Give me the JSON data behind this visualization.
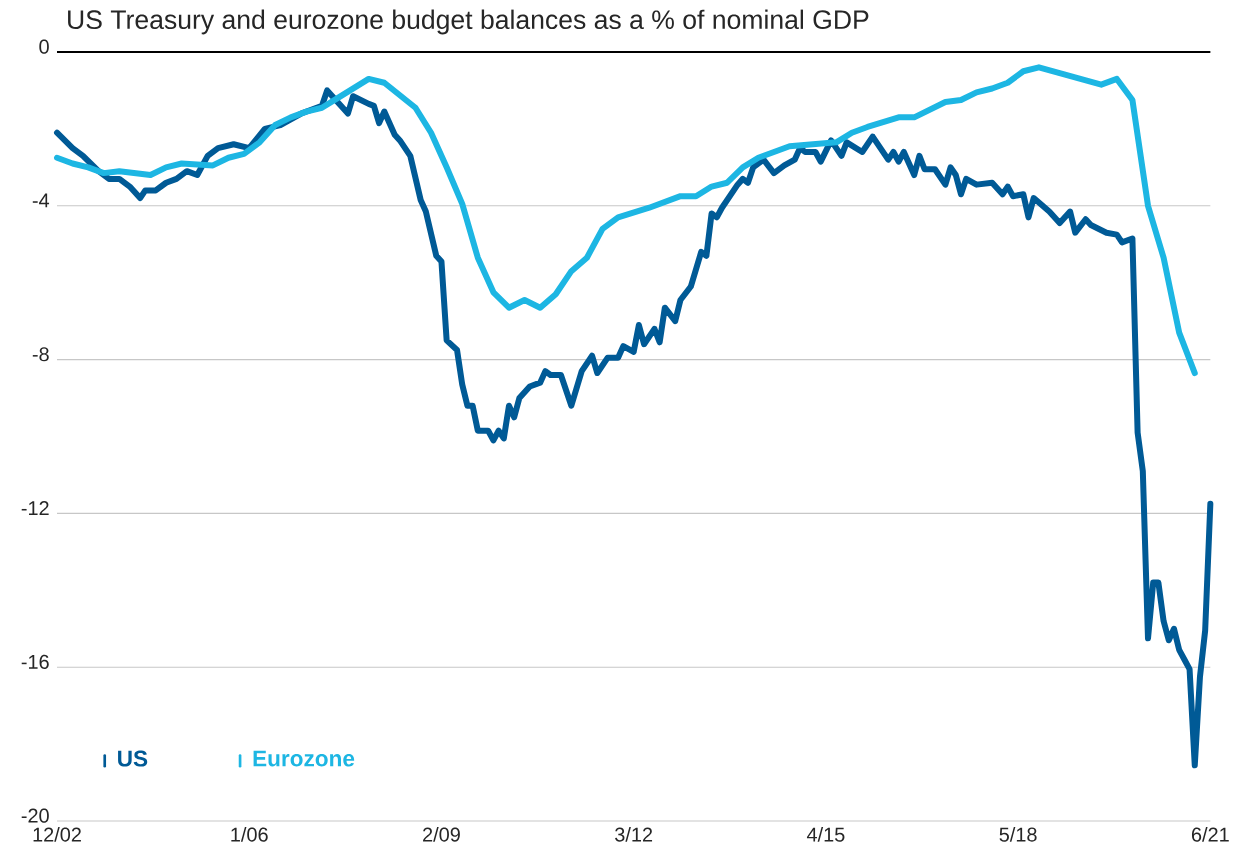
{
  "chart_data": {
    "type": "line",
    "title": "US Treasury and eurozone budget balances as a % of nominal GDP",
    "xlim": [
      "2002-12",
      "2021-06"
    ],
    "xticks": [
      {
        "value": "2002-12",
        "label": "12/02"
      },
      {
        "value": "2006-01",
        "label": "1/06"
      },
      {
        "value": "2009-02",
        "label": "2/09"
      },
      {
        "value": "2012-03",
        "label": "3/12"
      },
      {
        "value": "2015-04",
        "label": "4/15"
      },
      {
        "value": "2018-05",
        "label": "5/18"
      },
      {
        "value": "2021-06",
        "label": "6/21"
      }
    ],
    "ylim": [
      -20,
      0
    ],
    "yticks": [
      0,
      -4,
      -8,
      -12,
      -16,
      -20
    ],
    "grid": "y",
    "legend": "bottom left",
    "ref_lines": [
      {
        "axis": "y",
        "value": 0,
        "color": "#000000"
      }
    ],
    "series": [
      {
        "name": "US",
        "color": "#005a96",
        "x": [
          "2002-12",
          "2003-03",
          "2003-05",
          "2003-08",
          "2003-10",
          "2003-12",
          "2004-02",
          "2004-04",
          "2004-05",
          "2004-07",
          "2004-09",
          "2004-11",
          "2005-01",
          "2005-03",
          "2005-05",
          "2005-07",
          "2005-10",
          "2006-01",
          "2006-04",
          "2006-07",
          "2006-11",
          "2007-03",
          "2007-04",
          "2007-06",
          "2007-08",
          "2007-09",
          "2007-12",
          "2008-01",
          "2008-02",
          "2008-03",
          "2008-05",
          "2008-06",
          "2008-08",
          "2008-10",
          "2008-11",
          "2009-01",
          "2009-02",
          "2009-03",
          "2009-05",
          "2009-06",
          "2009-07",
          "2009-08",
          "2009-09",
          "2009-11",
          "2009-12",
          "2010-01",
          "2010-02",
          "2010-03",
          "2010-04",
          "2010-05",
          "2010-07",
          "2010-09",
          "2010-10",
          "2010-11",
          "2011-01",
          "2011-03",
          "2011-05",
          "2011-07",
          "2011-08",
          "2011-10",
          "2011-12",
          "2012-01",
          "2012-03",
          "2012-04",
          "2012-05",
          "2012-07",
          "2012-08",
          "2012-09",
          "2012-11",
          "2012-12",
          "2013-02",
          "2013-04",
          "2013-05",
          "2013-06",
          "2013-07",
          "2013-08",
          "2013-11",
          "2013-12",
          "2014-01",
          "2014-02",
          "2014-04",
          "2014-06",
          "2014-08",
          "2014-10",
          "2014-11",
          "2014-12",
          "2015-02",
          "2015-03",
          "2015-05",
          "2015-07",
          "2015-08",
          "2015-11",
          "2016-01",
          "2016-04",
          "2016-05",
          "2016-06",
          "2016-07",
          "2016-09",
          "2016-10",
          "2016-11",
          "2017-01",
          "2017-03",
          "2017-04",
          "2017-05",
          "2017-06",
          "2017-07",
          "2017-09",
          "2017-12",
          "2018-02",
          "2018-03",
          "2018-04",
          "2018-06",
          "2018-07",
          "2018-08",
          "2018-11",
          "2019-01",
          "2019-03",
          "2019-04",
          "2019-06",
          "2019-07",
          "2019-10",
          "2019-12",
          "2020-01",
          "2020-03",
          "2020-04",
          "2020-05",
          "2020-06",
          "2020-07",
          "2020-08",
          "2020-09",
          "2020-10",
          "2020-11",
          "2020-12",
          "2021-01",
          "2021-02",
          "2021-03",
          "2021-04",
          "2021-05",
          "2021-06"
        ],
        "values": [
          -2.1,
          -2.5,
          -2.7,
          -3.1,
          -3.3,
          -3.3,
          -3.5,
          -3.8,
          -3.6,
          -3.6,
          -3.4,
          -3.3,
          -3.1,
          -3.2,
          -2.7,
          -2.5,
          -2.4,
          -2.5,
          -2.0,
          -1.9,
          -1.6,
          -1.4,
          -1.0,
          -1.3,
          -1.6,
          -1.15,
          -1.35,
          -1.4,
          -1.85,
          -1.55,
          -2.15,
          -2.3,
          -2.7,
          -3.85,
          -4.15,
          -5.3,
          -5.45,
          -7.5,
          -7.75,
          -8.65,
          -9.2,
          -9.2,
          -9.85,
          -9.85,
          -10.1,
          -9.85,
          -10.05,
          -9.2,
          -9.5,
          -9.0,
          -8.7,
          -8.6,
          -8.3,
          -8.4,
          -8.4,
          -9.2,
          -8.3,
          -7.9,
          -8.35,
          -7.95,
          -7.95,
          -7.65,
          -7.8,
          -7.1,
          -7.6,
          -7.2,
          -7.55,
          -6.65,
          -7.0,
          -6.45,
          -6.1,
          -5.2,
          -5.3,
          -4.2,
          -4.3,
          -4.05,
          -3.45,
          -3.3,
          -3.4,
          -3.0,
          -2.8,
          -3.15,
          -2.95,
          -2.8,
          -2.5,
          -2.6,
          -2.6,
          -2.85,
          -2.3,
          -2.7,
          -2.35,
          -2.6,
          -2.2,
          -2.8,
          -2.6,
          -2.85,
          -2.6,
          -3.2,
          -2.7,
          -3.05,
          -3.05,
          -3.45,
          -3.0,
          -3.2,
          -3.7,
          -3.3,
          -3.45,
          -3.4,
          -3.7,
          -3.5,
          -3.75,
          -3.7,
          -4.3,
          -3.8,
          -4.15,
          -4.45,
          -4.15,
          -4.7,
          -4.35,
          -4.5,
          -4.7,
          -4.75,
          -4.95,
          -4.85,
          -9.9,
          -10.9,
          -15.25,
          -13.8,
          -13.8,
          -14.8,
          -15.3,
          -15.0,
          -15.55,
          -15.8,
          -16.05,
          -18.55,
          -16.25,
          -15.05,
          -11.75
        ]
      },
      {
        "name": "Eurozone",
        "color": "#1db6e3",
        "x": [
          "2002-12",
          "2003-03",
          "2003-06",
          "2003-09",
          "2003-12",
          "2004-06",
          "2004-09",
          "2004-12",
          "2005-06",
          "2005-09",
          "2005-12",
          "2006-03",
          "2006-06",
          "2006-09",
          "2006-12",
          "2007-03",
          "2007-06",
          "2007-12",
          "2008-03",
          "2008-09",
          "2008-12",
          "2009-03",
          "2009-06",
          "2009-09",
          "2009-12",
          "2010-03",
          "2010-06",
          "2010-09",
          "2010-12",
          "2011-03",
          "2011-06",
          "2011-09",
          "2011-12",
          "2012-06",
          "2012-12",
          "2013-03",
          "2013-06",
          "2013-09",
          "2013-12",
          "2014-03",
          "2014-06",
          "2014-09",
          "2015-06",
          "2015-09",
          "2015-12",
          "2016-06",
          "2016-09",
          "2017-03",
          "2017-06",
          "2017-09",
          "2017-12",
          "2018-03",
          "2018-06",
          "2018-09",
          "2019-09",
          "2019-12",
          "2020-03",
          "2020-06",
          "2020-09",
          "2020-12",
          "2021-03"
        ],
        "values": [
          -2.75,
          -2.9,
          -3.0,
          -3.15,
          -3.1,
          -3.2,
          -3.0,
          -2.9,
          -2.95,
          -2.75,
          -2.65,
          -2.35,
          -1.9,
          -1.7,
          -1.55,
          -1.45,
          -1.2,
          -0.7,
          -0.8,
          -1.45,
          -2.1,
          -3.0,
          -3.95,
          -5.35,
          -6.25,
          -6.65,
          -6.45,
          -6.65,
          -6.3,
          -5.7,
          -5.35,
          -4.6,
          -4.3,
          -4.05,
          -3.75,
          -3.75,
          -3.5,
          -3.4,
          -3.0,
          -2.75,
          -2.6,
          -2.45,
          -2.35,
          -2.1,
          -1.95,
          -1.7,
          -1.7,
          -1.3,
          -1.25,
          -1.05,
          -0.95,
          -0.8,
          -0.5,
          -0.4,
          -0.85,
          -0.7,
          -1.25,
          -4.0,
          -5.35,
          -7.3,
          -8.35
        ]
      }
    ]
  }
}
